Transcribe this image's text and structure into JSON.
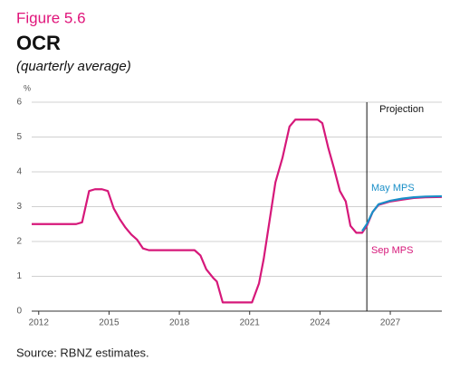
{
  "chart_data": {
    "type": "line",
    "figure_label": "Figure 5.6",
    "title": "OCR",
    "subtitle": "(quarterly average)",
    "y_label": "%",
    "annotation": "Projection",
    "projection_start": 2026.0,
    "source": "Source: RBNZ estimates.",
    "xlim": [
      2011.7,
      2029.2
    ],
    "xticks": [
      2012,
      2015,
      2018,
      2021,
      2024,
      2027
    ],
    "ylim": [
      0,
      6
    ],
    "yticks": [
      0,
      1,
      2,
      3,
      4,
      5,
      6
    ],
    "grid": true,
    "series": [
      {
        "name": "Sep MPS",
        "color": "#d6187a",
        "x": [
          2011.7,
          2013.6,
          2013.85,
          2014.15,
          2014.4,
          2014.7,
          2014.95,
          2015.2,
          2015.45,
          2015.7,
          2015.95,
          2016.2,
          2016.45,
          2016.7,
          2018.65,
          2018.9,
          2019.15,
          2019.45,
          2019.6,
          2019.85,
          2021.1,
          2021.4,
          2021.6,
          2021.85,
          2022.1,
          2022.4,
          2022.7,
          2022.95,
          2023.9,
          2024.1,
          2024.35,
          2024.6,
          2024.85,
          2025.1,
          2025.3,
          2025.55,
          2025.8,
          2026.0,
          2026.25,
          2026.5,
          2027.0,
          2027.5,
          2028.0,
          2028.5,
          2029.2
        ],
        "values": [
          2.5,
          2.5,
          2.55,
          3.45,
          3.5,
          3.5,
          3.45,
          2.95,
          2.65,
          2.4,
          2.2,
          2.05,
          1.8,
          1.75,
          1.75,
          1.6,
          1.2,
          0.95,
          0.85,
          0.25,
          0.25,
          0.8,
          1.5,
          2.6,
          3.7,
          4.4,
          5.3,
          5.5,
          5.5,
          5.4,
          4.7,
          4.1,
          3.45,
          3.15,
          2.45,
          2.25,
          2.25,
          2.45,
          2.85,
          3.05,
          3.15,
          3.2,
          3.25,
          3.27,
          3.28
        ]
      },
      {
        "name": "May MPS",
        "color": "#1a8fc8",
        "x": [
          2025.8,
          2026.0,
          2026.25,
          2026.5,
          2027.0,
          2027.5,
          2028.0,
          2028.5,
          2029.2
        ],
        "values": [
          2.3,
          2.5,
          2.85,
          3.07,
          3.17,
          3.23,
          3.27,
          3.29,
          3.3
        ]
      }
    ]
  }
}
